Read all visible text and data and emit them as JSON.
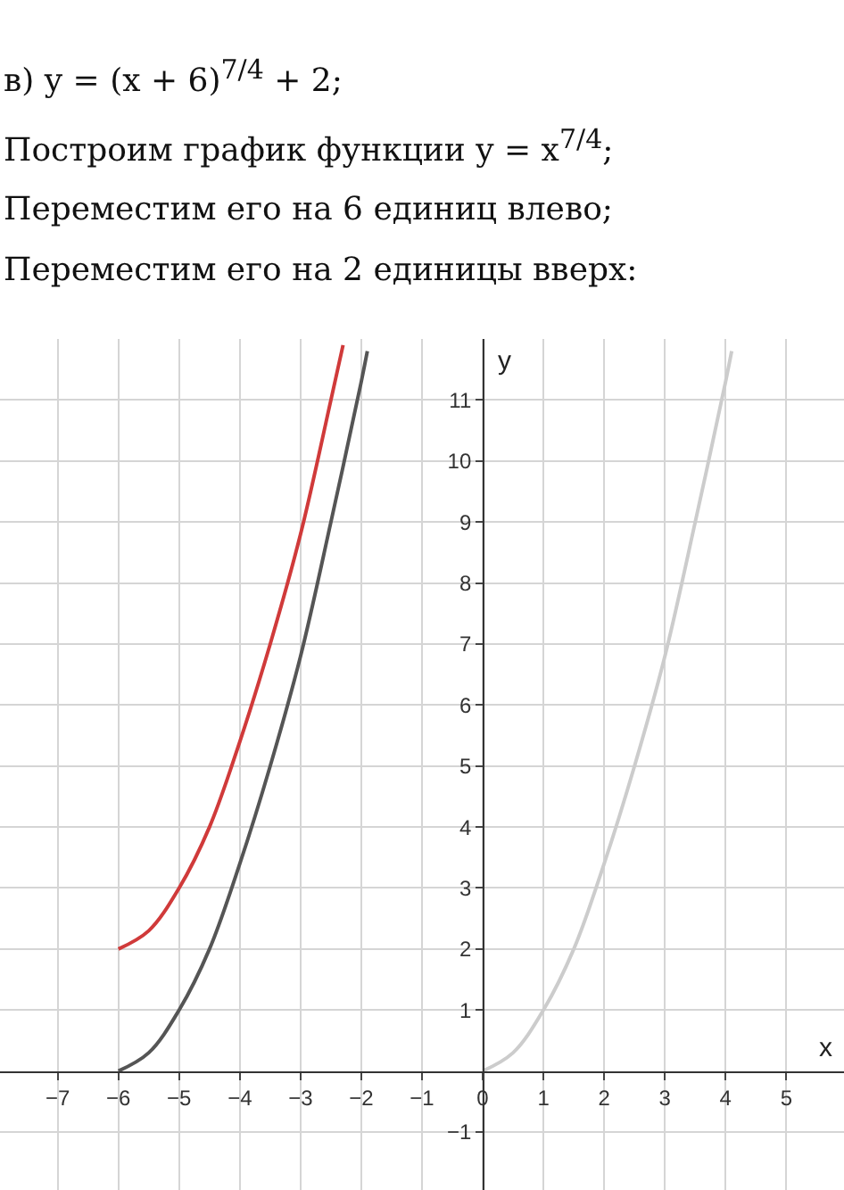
{
  "chart_data": {
    "type": "line",
    "title": "в) y = (x + 6)$^{7/4}$ + 2;",
    "subtitle": "Построим график функции y = x$^{7/4}$;",
    "annotations": [
      "Переместим его на 6 единиц влево;",
      "Переместим его на 2 единицы вверх:"
    ],
    "xlabel": "x",
    "ylabel": "y",
    "series": [
      {
        "color": "#cccccc",
        "x": [
          0,
          0.5,
          1,
          1.5,
          2,
          2.5,
          3,
          3.5,
          4,
          4.1
        ],
        "values": [
          0,
          0.3,
          1,
          2.0,
          3.4,
          5.0,
          6.8,
          9.0,
          11.3,
          11.8
        ]
      },
      {
        "color": "#555555",
        "x": [
          -6,
          -5.5,
          -5,
          -4.5,
          -4,
          -3.5,
          -3,
          -2.5,
          -2,
          -1.9
        ],
        "values": [
          0,
          0.3,
          1,
          2.0,
          3.4,
          5.0,
          6.8,
          9.0,
          11.3,
          11.8
        ]
      },
      {
        "color": "#d03a3a",
        "x": [
          -6,
          -5.5,
          -5,
          -4.5,
          -4,
          -3.5,
          -3,
          -2.5,
          -2.3
        ],
        "values": [
          2,
          2.3,
          3,
          4.0,
          5.4,
          7.0,
          8.8,
          11.0,
          11.9
        ]
      }
    ],
    "xlim": [
      -7.95,
      5.95
    ],
    "ylim": [
      -1.95,
      12
    ],
    "xticks": [
      -7,
      -6,
      -5,
      -4,
      -3,
      -2,
      -1,
      0,
      1,
      2,
      3,
      4,
      5
    ],
    "yticks": [
      -1,
      1,
      2,
      3,
      4,
      5,
      6,
      7,
      8,
      9,
      10,
      11
    ],
    "grid": true,
    "marker": "none",
    "line_style": "solid"
  }
}
